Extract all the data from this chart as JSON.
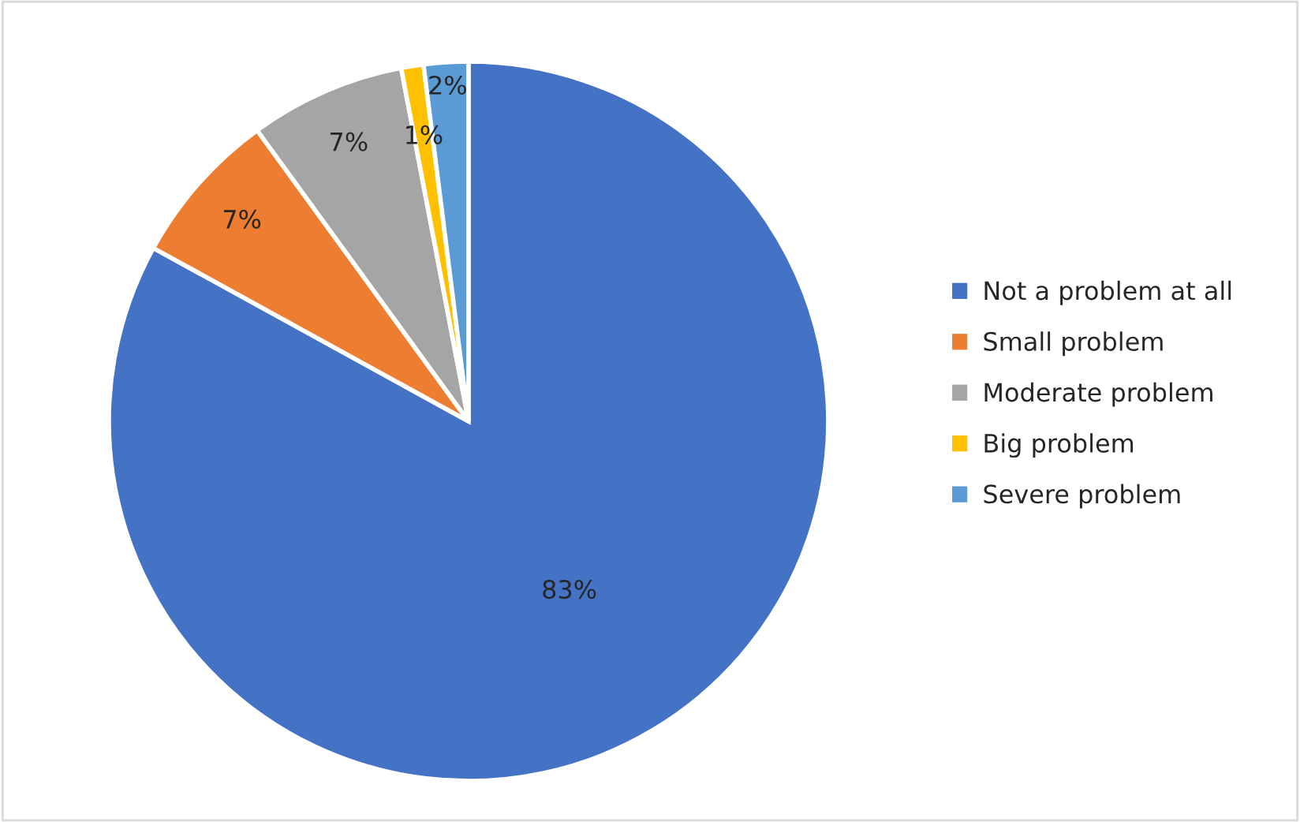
{
  "chart_data": {
    "type": "pie",
    "categories": [
      "Not a problem at all",
      "Small problem",
      "Moderate problem",
      "Big problem",
      "Severe problem"
    ],
    "values": [
      83,
      7,
      7,
      1,
      2
    ],
    "colors": [
      "#4472c4",
      "#ed7d31",
      "#a5a5a5",
      "#ffc000",
      "#5b9bd5"
    ],
    "value_labels": [
      "83%",
      "7%",
      "7%",
      "1%",
      "2%"
    ],
    "legend": "right"
  }
}
